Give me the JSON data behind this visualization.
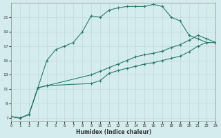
{
  "xlabel": "Humidex (Indice chaleur)",
  "bg_color": "#d4ecee",
  "grid_color": "#c0d8dc",
  "line_color": "#2a7a6a",
  "line1_x": [
    0,
    1,
    2,
    3,
    4,
    5,
    6,
    7,
    8,
    9,
    10,
    11,
    12,
    13,
    14,
    15,
    16,
    17,
    18,
    19,
    20,
    21,
    22,
    23
  ],
  "line1_y": [
    7.2,
    7.0,
    7.5,
    11.2,
    15.0,
    16.5,
    17.0,
    17.5,
    19.0,
    21.2,
    21.0,
    22.0,
    22.3,
    22.5,
    22.5,
    22.5,
    22.8,
    22.5,
    21.0,
    20.5,
    18.5,
    18.0,
    17.5,
    17.5
  ],
  "line2_x": [
    0,
    1,
    2,
    3,
    4,
    9,
    10,
    11,
    12,
    13,
    14,
    15,
    16,
    17,
    18,
    19,
    20,
    21,
    22,
    23
  ],
  "line2_y": [
    7.2,
    7.0,
    7.5,
    11.2,
    11.5,
    13.0,
    13.5,
    14.0,
    14.5,
    15.0,
    15.5,
    15.8,
    16.0,
    16.3,
    16.8,
    17.2,
    17.8,
    18.5,
    18.0,
    17.5
  ],
  "line3_x": [
    0,
    1,
    2,
    3,
    4,
    9,
    10,
    11,
    12,
    13,
    14,
    15,
    16,
    17,
    18,
    19,
    20,
    21,
    22,
    23
  ],
  "line3_y": [
    7.2,
    7.0,
    7.5,
    11.2,
    11.5,
    11.8,
    12.2,
    13.2,
    13.6,
    13.9,
    14.2,
    14.5,
    14.7,
    15.0,
    15.3,
    15.6,
    16.2,
    17.0,
    17.5,
    17.5
  ],
  "xlim": [
    0,
    23
  ],
  "ylim": [
    6.5,
    23.0
  ],
  "xticks": [
    0,
    1,
    2,
    3,
    4,
    5,
    6,
    7,
    8,
    9,
    10,
    11,
    12,
    13,
    14,
    15,
    16,
    17,
    18,
    19,
    20,
    21,
    22,
    23
  ],
  "yticks": [
    7,
    9,
    11,
    13,
    15,
    17,
    19,
    21
  ],
  "marker": "+",
  "markersize": 3.0,
  "linewidth": 0.8
}
